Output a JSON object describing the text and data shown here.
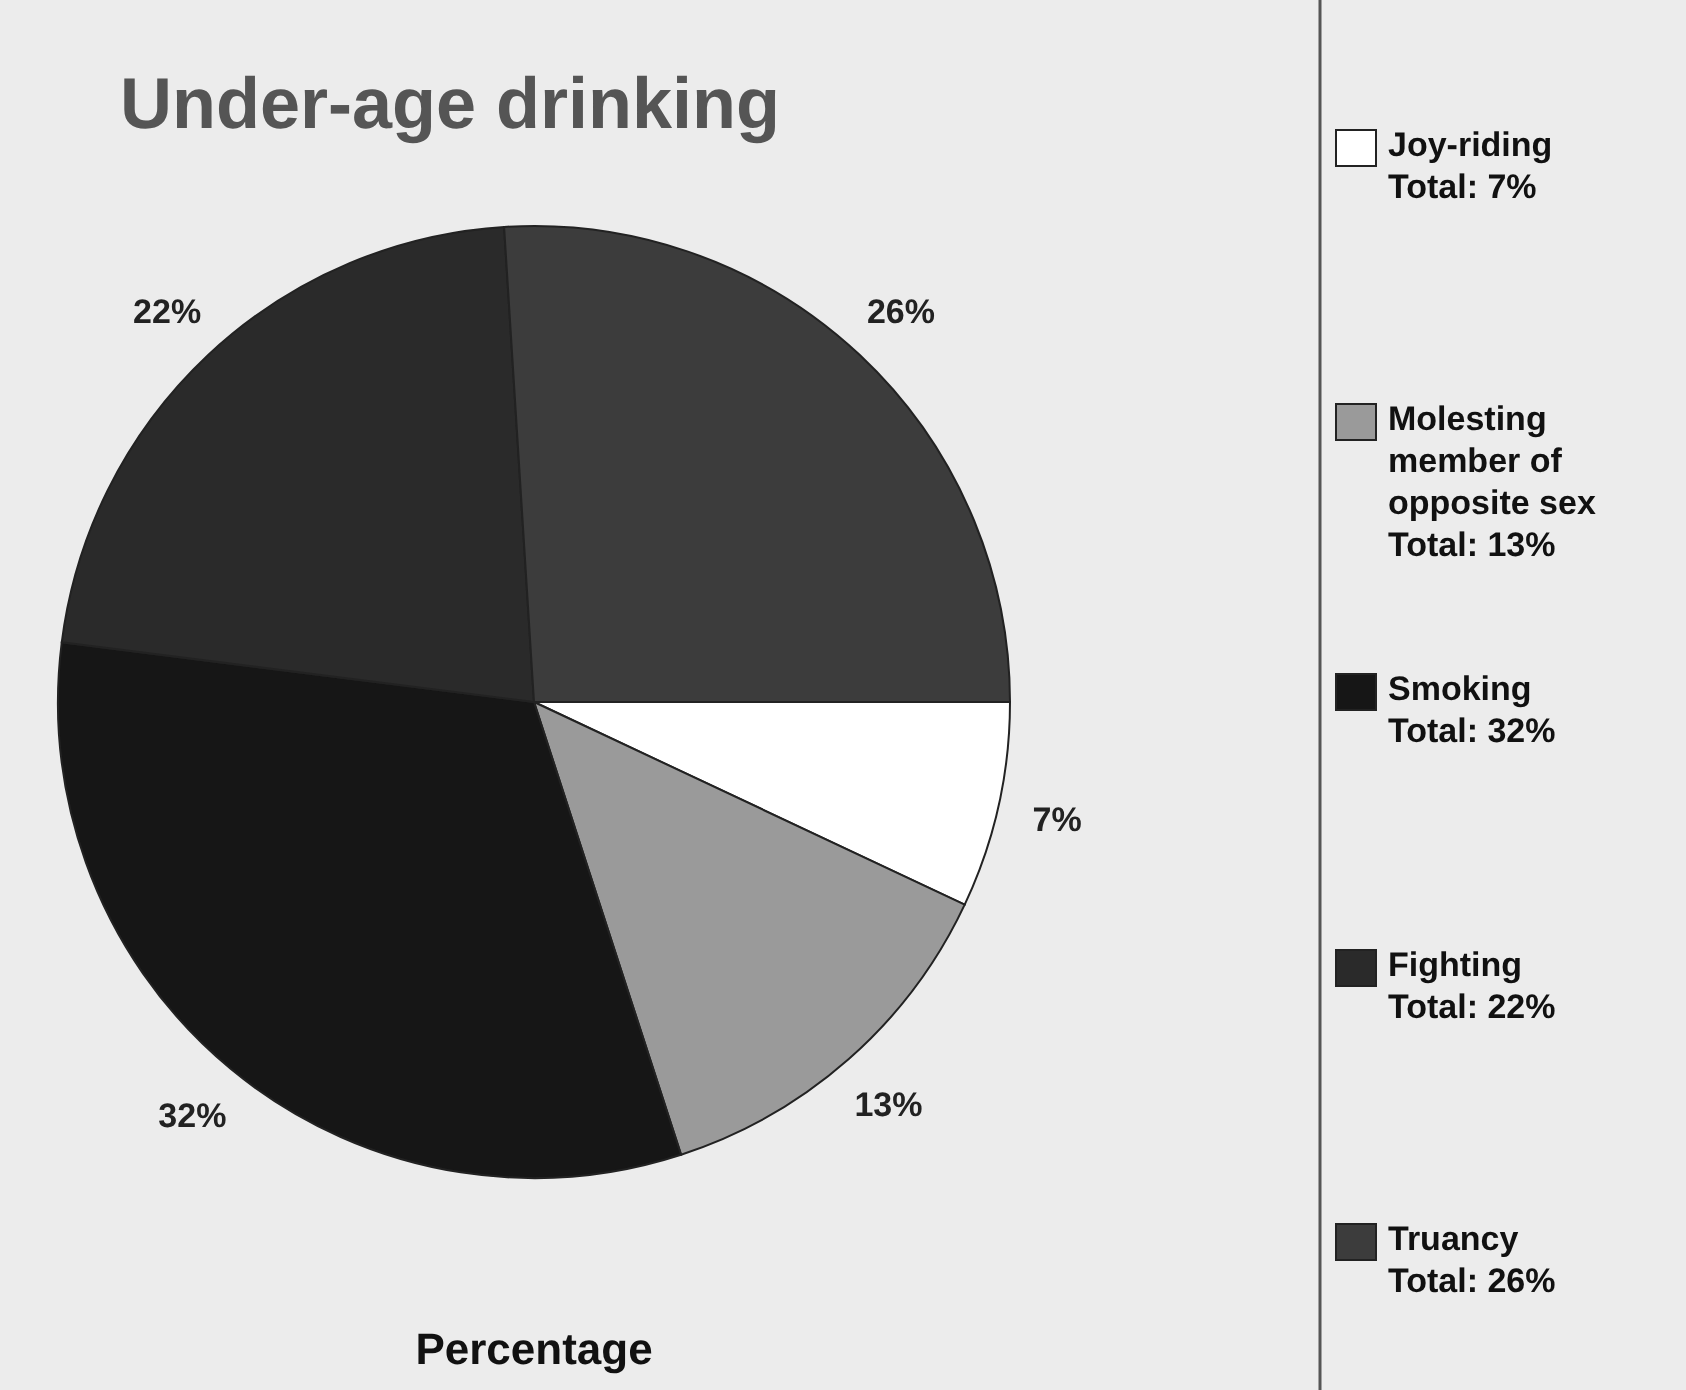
{
  "chart_data": {
    "type": "pie",
    "title": "Under-age drinking",
    "xlabel": "Percentage",
    "categories": [
      "Joy-riding\nTotal: 7%",
      "Molesting\nmember of\nopposite sex\nTotal: 13%",
      "Smoking\nTotal: 32%",
      "Fighting\nTotal: 22%",
      "Truancy\nTotal: 26%"
    ],
    "values": [
      7,
      13,
      32,
      22,
      26
    ],
    "colors": [
      "#ffffff",
      "#9a9a9a",
      "#161616",
      "#2a2a2a",
      "#3c3c3c"
    ],
    "value_labels": [
      "7%",
      "13%",
      "32%",
      "22%",
      "26%"
    ],
    "legend": "right"
  }
}
